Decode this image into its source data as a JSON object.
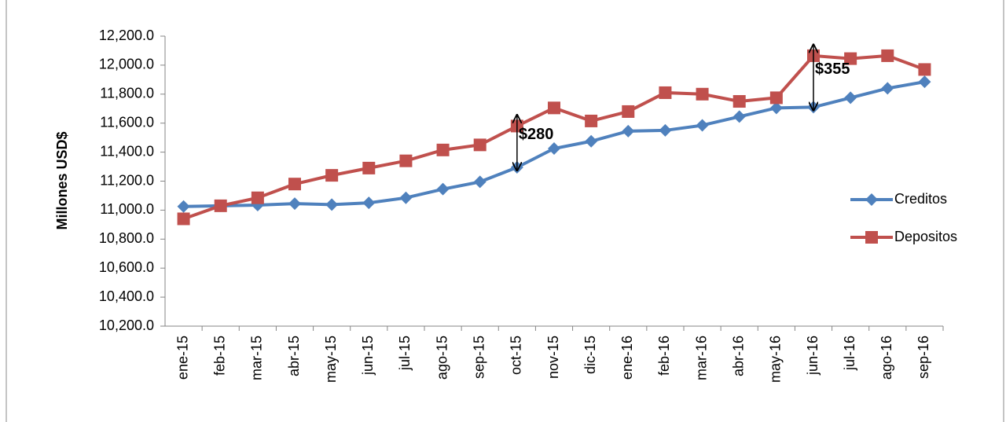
{
  "chart_data": {
    "type": "line",
    "y_label": "Millones USD$",
    "categories": [
      "ene-15",
      "feb-15",
      "mar-15",
      "abr-15",
      "may-15",
      "jun-15",
      "jul-15",
      "ago-15",
      "sep-15",
      "oct-15",
      "nov-15",
      "dic-15",
      "ene-16",
      "feb-16",
      "mar-16",
      "abr-16",
      "may-16",
      "jun-16",
      "jul-16",
      "ago-16",
      "sep-16"
    ],
    "series": [
      {
        "name": "Creditos",
        "color": "#4f81bd",
        "marker": "diamond",
        "values": [
          11025,
          11030,
          11035,
          11045,
          11038,
          11050,
          11085,
          11145,
          11195,
          11295,
          11425,
          11475,
          11545,
          11550,
          11585,
          11645,
          11705,
          11710,
          11775,
          11840,
          11885
        ]
      },
      {
        "name": "Depositos",
        "color": "#c0504d",
        "marker": "square",
        "values": [
          10940,
          11030,
          11085,
          11180,
          11240,
          11290,
          11340,
          11415,
          11450,
          11580,
          11705,
          11615,
          11680,
          11810,
          11800,
          11750,
          11775,
          12065,
          12045,
          12065,
          11970
        ]
      }
    ],
    "annotations": [
      {
        "text": "$280",
        "x": "oct-15"
      },
      {
        "text": "$355",
        "x": "jun-16"
      }
    ],
    "ylim": [
      10200,
      12200
    ],
    "yticks": [
      {
        "value": 10200,
        "label": "10,200.0"
      },
      {
        "value": 10400,
        "label": "10,400.0"
      },
      {
        "value": 10600,
        "label": "10,600.0"
      },
      {
        "value": 10800,
        "label": "10,800.0"
      },
      {
        "value": 11000,
        "label": "11,000.0"
      },
      {
        "value": 11200,
        "label": "11,200.0"
      },
      {
        "value": 11400,
        "label": "11,400.0"
      },
      {
        "value": 11600,
        "label": "11,600.0"
      },
      {
        "value": 11800,
        "label": "11,800.0"
      },
      {
        "value": 12000,
        "label": "12,000.0"
      },
      {
        "value": 12200,
        "label": "12,200.0"
      }
    ],
    "grid": false,
    "legend": "right"
  }
}
